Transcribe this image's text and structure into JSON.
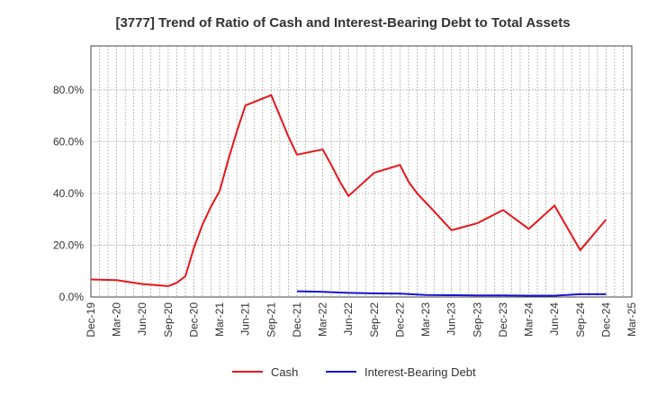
{
  "chart_data": {
    "type": "line",
    "title": "[3777]  Trend of Ratio of Cash and Interest-Bearing Debt to Total Assets",
    "xlabel": "",
    "ylabel": "",
    "ylim": [
      0,
      97
    ],
    "y_ticks": [
      0,
      20,
      40,
      60,
      80
    ],
    "y_tick_labels": [
      "0.0%",
      "20.0%",
      "40.0%",
      "60.0%",
      "80.0%"
    ],
    "x_tick_labels": [
      "Dec-19",
      "Mar-20",
      "Jun-20",
      "Sep-20",
      "Dec-20",
      "Mar-21",
      "Jun-21",
      "Sep-21",
      "Dec-21",
      "Mar-22",
      "Jun-22",
      "Sep-22",
      "Dec-22",
      "Mar-23",
      "Jun-23",
      "Sep-23",
      "Dec-23",
      "Mar-24",
      "Jun-24",
      "Sep-24",
      "Dec-24",
      "Mar-25"
    ],
    "x_range_months": [
      0,
      63
    ],
    "grid": true,
    "legend_position": "bottom-center",
    "series": [
      {
        "name": "Cash",
        "color": "#e8161b",
        "points": [
          [
            0,
            6.8
          ],
          [
            3,
            6.5
          ],
          [
            6,
            5.0
          ],
          [
            9,
            4.2
          ],
          [
            10,
            5.5
          ],
          [
            11,
            8.0
          ],
          [
            12,
            19.0
          ],
          [
            13,
            28.0
          ],
          [
            14,
            35.0
          ],
          [
            15,
            41.0
          ],
          [
            16,
            53.0
          ],
          [
            17,
            64.0
          ],
          [
            18,
            74.0
          ],
          [
            21,
            78.0
          ],
          [
            22,
            70.0
          ],
          [
            23,
            62.0
          ],
          [
            24,
            55.0
          ],
          [
            27,
            57.0
          ],
          [
            28,
            51.0
          ],
          [
            29,
            44.5
          ],
          [
            30,
            39.0
          ],
          [
            33,
            48.0
          ],
          [
            36,
            51.0
          ],
          [
            37,
            44.5
          ],
          [
            38,
            40.0
          ],
          [
            40,
            33.0
          ],
          [
            42,
            25.8
          ],
          [
            45,
            28.5
          ],
          [
            48,
            33.6
          ],
          [
            51,
            26.3
          ],
          [
            54,
            35.3
          ],
          [
            57,
            18.1
          ],
          [
            60,
            29.9
          ]
        ]
      },
      {
        "name": "Interest-Bearing Debt",
        "color": "#1515d0",
        "points": [
          [
            24,
            2.2
          ],
          [
            27,
            2.0
          ],
          [
            30,
            1.6
          ],
          [
            33,
            1.4
          ],
          [
            36,
            1.3
          ],
          [
            39,
            0.8
          ],
          [
            42,
            0.7
          ],
          [
            45,
            0.6
          ],
          [
            48,
            0.6
          ],
          [
            51,
            0.5
          ],
          [
            54,
            0.5
          ],
          [
            57,
            1.1
          ],
          [
            60,
            1.1
          ]
        ]
      }
    ]
  }
}
